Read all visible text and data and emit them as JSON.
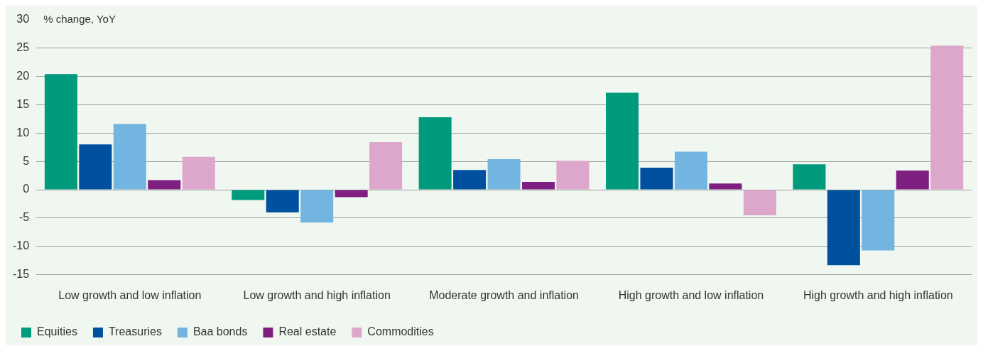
{
  "chart_data": {
    "type": "bar",
    "ylabel": "% change, YoY",
    "categories": [
      "Low growth and low inflation",
      "Low growth and high inflation",
      "Moderate growth and inflation",
      "High growth and low inflation",
      "High growth and high inflation"
    ],
    "series": [
      {
        "name": "Equities",
        "color": "#009a7c",
        "values": [
          20.4,
          -1.8,
          12.8,
          17.1,
          4.5
        ]
      },
      {
        "name": "Treasuries",
        "color": "#0050a0",
        "values": [
          8.0,
          -4.0,
          3.5,
          3.9,
          -13.3
        ]
      },
      {
        "name": "Baa bonds",
        "color": "#72b5e0",
        "values": [
          11.6,
          -5.8,
          5.4,
          6.7,
          -10.7
        ]
      },
      {
        "name": "Real estate",
        "color": "#7f1f7f",
        "values": [
          1.7,
          -1.3,
          1.4,
          1.1,
          3.4
        ]
      },
      {
        "name": "Commodities",
        "color": "#dda6cb",
        "values": [
          5.8,
          8.4,
          5.1,
          -4.5,
          25.4
        ]
      }
    ],
    "ylim": [
      -15,
      30
    ],
    "yticks": [
      -15,
      -10,
      -5,
      0,
      5,
      10,
      15,
      20,
      25,
      30
    ],
    "grid": "y",
    "legend": "bottom left"
  }
}
